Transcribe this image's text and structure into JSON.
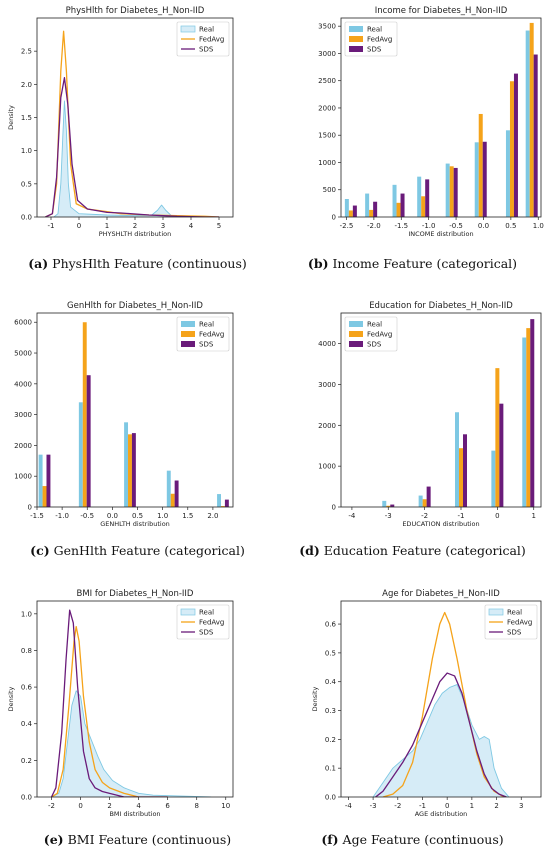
{
  "colors": {
    "real": "#7ec8e3",
    "fedavg": "#f5a31a",
    "sds": "#6a1b7a",
    "real_fill": "#d6ecf7"
  },
  "captions": [
    {
      "letter": "(a)",
      "text": "PhysHlth Feature (continuous)"
    },
    {
      "letter": "(b)",
      "text": "Income Feature (categorical)"
    },
    {
      "letter": "(c)",
      "text": "GenHlth Feature (categorical)"
    },
    {
      "letter": "(d)",
      "text": "Education Feature (categorical)"
    },
    {
      "letter": "(e)",
      "text": "BMI Feature (continuous)"
    },
    {
      "letter": "(f)",
      "text": "Age Feature (continuous)"
    }
  ],
  "chart_data": [
    {
      "type": "area",
      "title": "PhysHlth for Diabetes_H_Non-IID",
      "xlabel": "PHYSHLTH distribution",
      "ylabel": "Density",
      "xlim": [
        -1.5,
        5.5
      ],
      "ylim": [
        0,
        3.0
      ],
      "xticks": [
        "-1",
        "0",
        "1",
        "2",
        "3",
        "4",
        "5"
      ],
      "xtick_values": [
        -1,
        0,
        1,
        2,
        3,
        4,
        5
      ],
      "yticks": [
        "0.0",
        "0.5",
        "1.0",
        "1.5",
        "2.0",
        "2.5"
      ],
      "ytick_values": [
        0,
        0.5,
        1.0,
        1.5,
        2.0,
        2.5
      ],
      "legend": [
        "Real",
        "FedAvg",
        "SDS"
      ],
      "legend_position": "top-right",
      "series": [
        {
          "name": "Real",
          "points": [
            [
              -0.9,
              0
            ],
            [
              -0.75,
              0.05
            ],
            [
              -0.65,
              0.5
            ],
            [
              -0.58,
              1.2
            ],
            [
              -0.52,
              1.75
            ],
            [
              -0.45,
              1.3
            ],
            [
              -0.38,
              0.5
            ],
            [
              -0.3,
              0.15
            ],
            [
              0,
              0.05
            ],
            [
              1,
              0.03
            ],
            [
              2,
              0.02
            ],
            [
              2.6,
              0.03
            ],
            [
              2.8,
              0.1
            ],
            [
              2.95,
              0.18
            ],
            [
              3.1,
              0.1
            ],
            [
              3.3,
              0.02
            ],
            [
              4,
              0.01
            ],
            [
              5,
              0
            ]
          ]
        },
        {
          "name": "FedAvg",
          "points": [
            [
              -1.2,
              0
            ],
            [
              -0.95,
              0.05
            ],
            [
              -0.8,
              0.5
            ],
            [
              -0.65,
              2.2
            ],
            [
              -0.55,
              2.8
            ],
            [
              -0.45,
              2.2
            ],
            [
              -0.3,
              0.8
            ],
            [
              -0.1,
              0.2
            ],
            [
              0.3,
              0.12
            ],
            [
              1,
              0.08
            ],
            [
              1.5,
              0.05
            ],
            [
              2.5,
              0.03
            ],
            [
              3.5,
              0.02
            ],
            [
              4.5,
              0.01
            ],
            [
              5,
              0
            ]
          ]
        },
        {
          "name": "SDS",
          "points": [
            [
              -1.2,
              0
            ],
            [
              -0.95,
              0.05
            ],
            [
              -0.8,
              0.6
            ],
            [
              -0.65,
              1.8
            ],
            [
              -0.52,
              2.1
            ],
            [
              -0.4,
              1.7
            ],
            [
              -0.25,
              0.8
            ],
            [
              -0.05,
              0.25
            ],
            [
              0.3,
              0.12
            ],
            [
              1,
              0.07
            ],
            [
              1.5,
              0.06
            ],
            [
              2.5,
              0.03
            ],
            [
              3.5,
              0.01
            ],
            [
              4.5,
              0
            ],
            [
              5,
              0
            ]
          ]
        }
      ]
    },
    {
      "type": "bar",
      "title": "Income for Diabetes_H_Non-IID",
      "xlabel": "INCOME distribution",
      "ylabel": "",
      "xlim": [
        -2.6,
        1.05
      ],
      "ylim": [
        0,
        3650
      ],
      "xticks": [
        "-2.5",
        "-2.0",
        "-1.5",
        "-1.0",
        "-0.5",
        "0.0",
        "0.5",
        "1.0"
      ],
      "xtick_values": [
        -2.5,
        -2.0,
        -1.5,
        -1.0,
        -0.5,
        0.0,
        0.5,
        1.0
      ],
      "yticks": [
        "0",
        "500",
        "1000",
        "1500",
        "2000",
        "2500",
        "3000",
        "3500"
      ],
      "ytick_values": [
        0,
        500,
        1000,
        1500,
        2000,
        2500,
        3000,
        3500
      ],
      "legend": [
        "Real",
        "FedAvg",
        "SDS"
      ],
      "legend_position": "top-left",
      "x": [
        -2.42,
        -2.05,
        -1.55,
        -1.1,
        -0.58,
        -0.05,
        0.52,
        0.88
      ],
      "series": [
        {
          "name": "Real",
          "values": [
            330,
            430,
            590,
            740,
            980,
            1370,
            1590,
            3420
          ]
        },
        {
          "name": "FedAvg",
          "values": [
            120,
            130,
            260,
            380,
            930,
            1890,
            2490,
            3560
          ]
        },
        {
          "name": "SDS",
          "values": [
            210,
            280,
            430,
            690,
            900,
            1380,
            2630,
            2980
          ]
        }
      ]
    },
    {
      "type": "bar",
      "title": "GenHlth for Diabetes_H_Non-IID",
      "xlabel": "GENHLTH distribution",
      "ylabel": "",
      "xlim": [
        -1.5,
        2.4
      ],
      "ylim": [
        0,
        6300
      ],
      "xticks": [
        "-1.5",
        "-1.0",
        "-0.5",
        "0.0",
        "0.5",
        "1.0",
        "1.5",
        "2.0"
      ],
      "xtick_values": [
        -1.5,
        -1.0,
        -0.5,
        0.0,
        0.5,
        1.0,
        1.5,
        2.0
      ],
      "yticks": [
        "0",
        "1000",
        "2000",
        "3000",
        "4000",
        "5000",
        "6000"
      ],
      "ytick_values": [
        0,
        1000,
        2000,
        3000,
        4000,
        5000,
        6000
      ],
      "legend": [
        "Real",
        "FedAvg",
        "SDS"
      ],
      "legend_position": "top-right",
      "x": [
        -1.35,
        -0.55,
        0.35,
        1.2,
        2.2
      ],
      "series": [
        {
          "name": "Real",
          "values": [
            1700,
            3400,
            2750,
            1180,
            420
          ]
        },
        {
          "name": "FedAvg",
          "values": [
            680,
            6000,
            2360,
            430,
            30
          ]
        },
        {
          "name": "SDS",
          "values": [
            1700,
            4280,
            2400,
            860,
            240
          ]
        }
      ]
    },
    {
      "type": "bar",
      "title": "Education for Diabetes_H_Non-IID",
      "xlabel": "EDUCATION distribution",
      "ylabel": "",
      "xlim": [
        -4.3,
        1.2
      ],
      "ylim": [
        0,
        4750
      ],
      "xticks": [
        "-4",
        "-3",
        "-2",
        "-1",
        "0",
        "1"
      ],
      "xtick_values": [
        -4,
        -3,
        -2,
        -1,
        0,
        1
      ],
      "yticks": [
        "0",
        "1000",
        "2000",
        "3000",
        "4000"
      ],
      "ytick_values": [
        0,
        1000,
        2000,
        3000,
        4000
      ],
      "legend": [
        "Real",
        "FedAvg",
        "SDS"
      ],
      "legend_position": "top-left",
      "x": [
        -3.0,
        -2.0,
        -1.0,
        0.0,
        0.85
      ],
      "series": [
        {
          "name": "Real",
          "values": [
            150,
            280,
            2320,
            1380,
            4150
          ]
        },
        {
          "name": "FedAvg",
          "values": [
            30,
            190,
            1440,
            3400,
            4380
          ]
        },
        {
          "name": "SDS",
          "values": [
            60,
            500,
            1780,
            2530,
            4600
          ]
        }
      ]
    },
    {
      "type": "area",
      "title": "BMI for Diabetes_H_Non-IID",
      "xlabel": "BMI distribution",
      "ylabel": "Density",
      "xlim": [
        -3.0,
        10.5
      ],
      "ylim": [
        0,
        1.07
      ],
      "xticks": [
        "-2",
        "0",
        "2",
        "4",
        "6",
        "8",
        "10"
      ],
      "xtick_values": [
        -2,
        0,
        2,
        4,
        6,
        8,
        10
      ],
      "yticks": [
        "0.0",
        "0.2",
        "0.4",
        "0.6",
        "0.8",
        "1.0"
      ],
      "ytick_values": [
        0,
        0.2,
        0.4,
        0.6,
        0.8,
        1.0
      ],
      "legend": [
        "Real",
        "FedAvg",
        "SDS"
      ],
      "legend_position": "top-right",
      "series": [
        {
          "name": "Real",
          "points": [
            [
              -2,
              0
            ],
            [
              -1.5,
              0.02
            ],
            [
              -1.2,
              0.1
            ],
            [
              -0.9,
              0.3
            ],
            [
              -0.6,
              0.5
            ],
            [
              -0.3,
              0.58
            ],
            [
              0,
              0.55
            ],
            [
              0.3,
              0.4
            ],
            [
              0.8,
              0.3
            ],
            [
              1.2,
              0.22
            ],
            [
              1.6,
              0.15
            ],
            [
              2.2,
              0.09
            ],
            [
              3,
              0.05
            ],
            [
              4,
              0.02
            ],
            [
              5,
              0.01
            ],
            [
              7,
              0.005
            ],
            [
              9,
              0
            ]
          ]
        },
        {
          "name": "FedAvg",
          "points": [
            [
              -2,
              0
            ],
            [
              -1.6,
              0.02
            ],
            [
              -1.2,
              0.15
            ],
            [
              -0.8,
              0.5
            ],
            [
              -0.45,
              0.85
            ],
            [
              -0.3,
              0.93
            ],
            [
              -0.1,
              0.85
            ],
            [
              0.2,
              0.55
            ],
            [
              0.6,
              0.3
            ],
            [
              1,
              0.15
            ],
            [
              1.5,
              0.08
            ],
            [
              2,
              0.05
            ],
            [
              3,
              0.02
            ],
            [
              4,
              0
            ],
            [
              6,
              0
            ]
          ]
        },
        {
          "name": "SDS",
          "points": [
            [
              -2,
              0
            ],
            [
              -1.7,
              0.05
            ],
            [
              -1.3,
              0.35
            ],
            [
              -1.0,
              0.75
            ],
            [
              -0.75,
              1.02
            ],
            [
              -0.5,
              0.95
            ],
            [
              -0.2,
              0.6
            ],
            [
              0.2,
              0.25
            ],
            [
              0.6,
              0.1
            ],
            [
              1,
              0.05
            ],
            [
              1.5,
              0.03
            ],
            [
              2,
              0.02
            ],
            [
              3,
              0
            ],
            [
              6,
              0
            ]
          ]
        }
      ]
    },
    {
      "type": "area",
      "title": "Age for Diabetes_H_Non-IID",
      "xlabel": "AGE distribution",
      "ylabel": "Density",
      "xlim": [
        -4.3,
        3.8
      ],
      "ylim": [
        0,
        0.68
      ],
      "xticks": [
        "-4",
        "-3",
        "-2",
        "-1",
        "0",
        "1",
        "2",
        "3"
      ],
      "xtick_values": [
        -4,
        -3,
        -2,
        -1,
        0,
        1,
        2,
        3
      ],
      "yticks": [
        "0.0",
        "0.1",
        "0.2",
        "0.3",
        "0.4",
        "0.5",
        "0.6"
      ],
      "ytick_values": [
        0,
        0.1,
        0.2,
        0.3,
        0.4,
        0.5,
        0.6
      ],
      "legend": [
        "Real",
        "FedAvg",
        "SDS"
      ],
      "legend_position": "top-right",
      "series": [
        {
          "name": "Real",
          "points": [
            [
              -3.0,
              0
            ],
            [
              -2.6,
              0.05
            ],
            [
              -2.2,
              0.1
            ],
            [
              -1.8,
              0.13
            ],
            [
              -1.4,
              0.16
            ],
            [
              -1.1,
              0.2
            ],
            [
              -0.8,
              0.26
            ],
            [
              -0.5,
              0.32
            ],
            [
              -0.2,
              0.36
            ],
            [
              0.1,
              0.38
            ],
            [
              0.4,
              0.39
            ],
            [
              0.7,
              0.33
            ],
            [
              1.0,
              0.25
            ],
            [
              1.3,
              0.2
            ],
            [
              1.5,
              0.21
            ],
            [
              1.7,
              0.2
            ],
            [
              1.9,
              0.1
            ],
            [
              2.2,
              0.03
            ],
            [
              2.5,
              0
            ]
          ]
        },
        {
          "name": "FedAvg",
          "points": [
            [
              -2.6,
              0
            ],
            [
              -2.2,
              0.01
            ],
            [
              -1.8,
              0.04
            ],
            [
              -1.4,
              0.12
            ],
            [
              -1.0,
              0.28
            ],
            [
              -0.6,
              0.48
            ],
            [
              -0.3,
              0.6
            ],
            [
              -0.1,
              0.64
            ],
            [
              0.1,
              0.6
            ],
            [
              0.4,
              0.48
            ],
            [
              0.8,
              0.3
            ],
            [
              1.2,
              0.15
            ],
            [
              1.5,
              0.07
            ],
            [
              1.9,
              0.02
            ],
            [
              2.3,
              0
            ]
          ]
        },
        {
          "name": "SDS",
          "points": [
            [
              -2.9,
              0
            ],
            [
              -2.6,
              0.02
            ],
            [
              -2.2,
              0.07
            ],
            [
              -1.8,
              0.12
            ],
            [
              -1.4,
              0.18
            ],
            [
              -1.0,
              0.26
            ],
            [
              -0.6,
              0.34
            ],
            [
              -0.3,
              0.4
            ],
            [
              0.0,
              0.43
            ],
            [
              0.3,
              0.42
            ],
            [
              0.6,
              0.36
            ],
            [
              0.9,
              0.26
            ],
            [
              1.2,
              0.16
            ],
            [
              1.5,
              0.08
            ],
            [
              1.8,
              0.03
            ],
            [
              2.1,
              0.01
            ],
            [
              2.4,
              0
            ]
          ]
        }
      ]
    }
  ]
}
